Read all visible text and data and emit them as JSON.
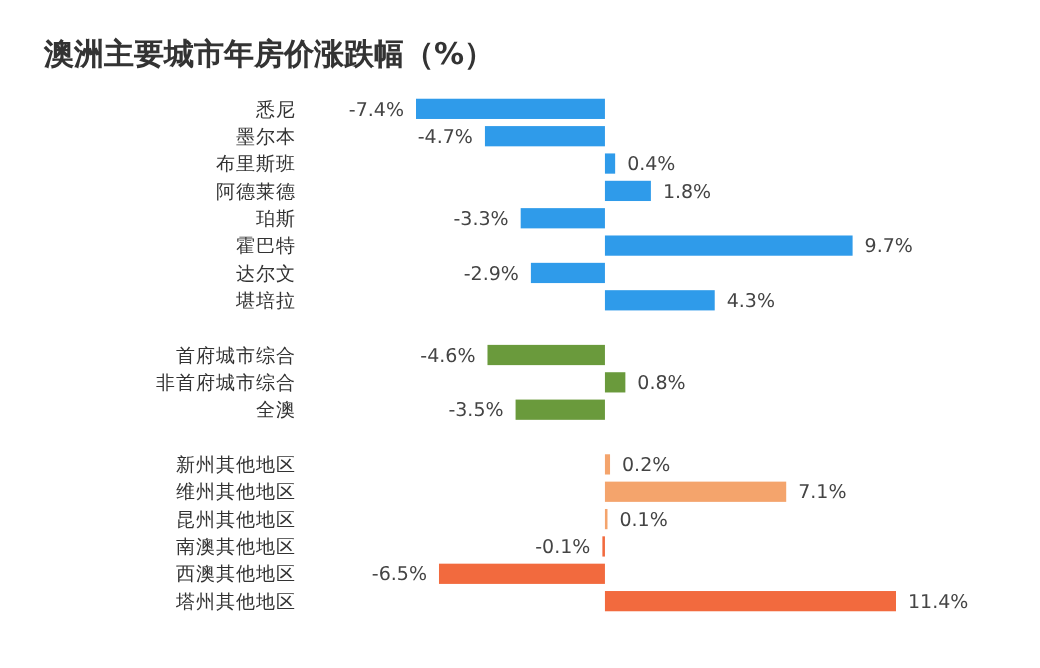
{
  "chart_data": {
    "type": "bar",
    "orientation": "horizontal",
    "title": "澳洲主要城市年房价涨跌幅（%）",
    "categories": [
      "悉尼",
      "墨尔本",
      "布里斯班",
      "阿德莱德",
      "珀斯",
      "霍巴特",
      "达尔文",
      "堪培拉",
      null,
      "首府城市综合",
      "非首府城市综合",
      "全澳",
      null,
      "新州其他地区",
      "维州其他地区",
      "昆州其他地区",
      "南澳其他地区",
      "西澳其他地区",
      "塔州其他地区"
    ],
    "values": [
      -7.4,
      -4.7,
      0.4,
      1.8,
      -3.3,
      9.7,
      -2.9,
      4.3,
      null,
      -4.6,
      0.8,
      -3.5,
      null,
      0.2,
      7.1,
      0.1,
      -0.1,
      -6.5,
      11.4
    ],
    "value_labels": [
      "-7.4%",
      "-4.7%",
      "0.4%",
      "1.8%",
      "-3.3%",
      "9.7%",
      "-2.9%",
      "4.3%",
      null,
      "-4.6%",
      "0.8%",
      "-3.5%",
      null,
      "0.2%",
      "7.1%",
      "0.1%",
      "-0.1%",
      "-6.5%",
      "11.4%"
    ],
    "colors": [
      "#2f9bea",
      "#2f9bea",
      "#2f9bea",
      "#2f9bea",
      "#2f9bea",
      "#2f9bea",
      "#2f9bea",
      "#2f9bea",
      null,
      "#6a9a3c",
      "#6a9a3c",
      "#6a9a3c",
      null,
      "#f4a46c",
      "#f4a46c",
      "#f4a46c",
      "#f26a3e",
      "#f26a3e",
      "#f26a3e"
    ]
  }
}
